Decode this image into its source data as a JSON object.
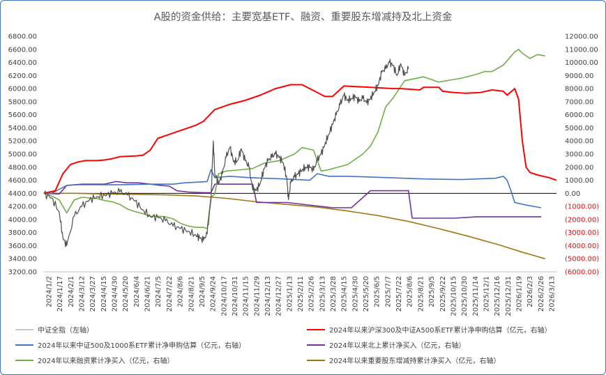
{
  "title": "A股的资金供给：主要宽基ETF、融资、重要股东增减持及北上资金",
  "chart_data": {
    "type": "line",
    "title": "A股的资金供给：主要宽基ETF、融资、重要股东增减持及北上资金",
    "y_left": {
      "min": 3200,
      "max": 6800,
      "step": 200,
      "ticks": [
        "3200.00",
        "3400.00",
        "3600.00",
        "3800.00",
        "4000.00",
        "4200.00",
        "4400.00",
        "4600.00",
        "4800.00",
        "5000.00",
        "5200.00",
        "5400.00",
        "5600.00",
        "5800.00",
        "6000.00",
        "6200.00",
        "6400.00",
        "6600.00",
        "6800.00"
      ]
    },
    "y_right": {
      "min": -6000,
      "max": 12000,
      "step": 1000,
      "ticks": [
        "(6000.00)",
        "(5000.00)",
        "(4000.00)",
        "(3000.00)",
        "(2000.00)",
        "(1000.00)",
        "0.00",
        "1000.00",
        "2000.00",
        "3000.00",
        "4000.00",
        "5000.00",
        "6000.00",
        "7000.00",
        "8000.00",
        "9000.00",
        "10000.00",
        "11000.00",
        "12000.00"
      ]
    },
    "x_ticks": [
      "2024/1/2",
      "2024/1/17",
      "2024/2/1",
      "2024/3/12",
      "2024/3/27",
      "2024/4/15",
      "2024/4/30",
      "2024/5/20",
      "2024/6/4",
      "2024/6/21",
      "2024/7/5",
      "2024/7/22",
      "2024/8/6",
      "2024/8/21",
      "2024/9/5",
      "2024/9/24",
      "2024/10/17",
      "2024/10/31",
      "2024/11/15",
      "2024/11/29",
      "2024/12/13",
      "2024/12/27",
      "2025/1/13",
      "2025/2/11",
      "2025/2/26",
      "2025/3/13",
      "2025/3/28",
      "2025/4/15",
      "2025/4/30",
      "2025/5/20",
      "2025/6/5",
      "2025/7/7",
      "2025/7/22",
      "2025/8/6",
      "2025/8/21",
      "2025/9/5",
      "2025/9/22",
      "2025/10/15",
      "2025/10/30",
      "2025/11/14",
      "2025/12/1",
      "2025/12/16",
      "2025/12/31",
      "2026/1/19",
      "2026/2/3",
      "2026/2/26",
      "2026/3/13"
    ],
    "series": [
      {
        "name": "中证全指（左轴）",
        "axis": "left",
        "color": "#4d4d4d",
        "points": [
          [
            0,
            4390
          ],
          [
            2,
            4330
          ],
          [
            4,
            4120
          ],
          [
            5,
            3720
          ],
          [
            6,
            3600
          ],
          [
            8,
            4050
          ],
          [
            10,
            4200
          ],
          [
            12,
            4300
          ],
          [
            14,
            4350
          ],
          [
            16,
            4370
          ],
          [
            18,
            4400
          ],
          [
            20,
            4420
          ],
          [
            22,
            4370
          ],
          [
            24,
            4280
          ],
          [
            26,
            4150
          ],
          [
            28,
            4050
          ],
          [
            30,
            4030
          ],
          [
            32,
            3980
          ],
          [
            34,
            3900
          ],
          [
            36,
            3860
          ],
          [
            38,
            3820
          ],
          [
            40,
            3760
          ],
          [
            41,
            3720
          ],
          [
            42,
            3680
          ],
          [
            43,
            3780
          ],
          [
            44,
            4300
          ],
          [
            44.6,
            5200
          ],
          [
            45,
            4700
          ],
          [
            46,
            4550
          ],
          [
            47,
            4700
          ],
          [
            48,
            4950
          ],
          [
            49,
            5100
          ],
          [
            50,
            4880
          ],
          [
            51,
            4900
          ],
          [
            52,
            5080
          ],
          [
            53,
            4900
          ],
          [
            54,
            4800
          ],
          [
            55,
            4450
          ],
          [
            56,
            4450
          ],
          [
            57,
            4560
          ],
          [
            58,
            4780
          ],
          [
            59,
            4900
          ],
          [
            60,
            4950
          ],
          [
            61,
            5000
          ],
          [
            62,
            4950
          ],
          [
            63,
            4870
          ],
          [
            64,
            4620
          ],
          [
            64.4,
            4300
          ],
          [
            65,
            4560
          ],
          [
            66,
            4650
          ],
          [
            67,
            4700
          ],
          [
            68,
            4760
          ],
          [
            69,
            4800
          ],
          [
            70,
            4800
          ],
          [
            71,
            4750
          ],
          [
            72,
            4900
          ],
          [
            73,
            5000
          ],
          [
            74,
            5150
          ],
          [
            75,
            5300
          ],
          [
            76,
            5450
          ],
          [
            77,
            5600
          ],
          [
            78,
            5750
          ],
          [
            79,
            5900
          ],
          [
            80,
            5820
          ],
          [
            81,
            5850
          ],
          [
            82,
            5880
          ],
          [
            83,
            5800
          ],
          [
            84,
            5850
          ],
          [
            85,
            5780
          ],
          [
            86,
            5850
          ],
          [
            87,
            5950
          ],
          [
            88,
            6050
          ],
          [
            89,
            6250
          ],
          [
            90,
            6300
          ],
          [
            91,
            6400
          ],
          [
            92,
            6350
          ],
          [
            93,
            6200
          ],
          [
            94,
            6380
          ],
          [
            95,
            6200
          ],
          [
            96,
            6300
          ]
        ]
      },
      {
        "name": "2024年以来沪深300及中证A500系ETF累计净申购估算（亿元，右轴）",
        "axis": "right",
        "color": "#ff0000",
        "points": [
          [
            0,
            0
          ],
          [
            3,
            200
          ],
          [
            5,
            1500
          ],
          [
            7,
            2200
          ],
          [
            9,
            2400
          ],
          [
            11,
            2500
          ],
          [
            14,
            2500
          ],
          [
            16,
            2550
          ],
          [
            18,
            2650
          ],
          [
            20,
            2800
          ],
          [
            24,
            2850
          ],
          [
            26,
            2900
          ],
          [
            28,
            3300
          ],
          [
            30,
            4200
          ],
          [
            33,
            4500
          ],
          [
            36,
            4800
          ],
          [
            40,
            5200
          ],
          [
            42,
            5500
          ],
          [
            43,
            5800
          ],
          [
            45,
            6400
          ],
          [
            49,
            6800
          ],
          [
            53,
            7100
          ],
          [
            57,
            7500
          ],
          [
            61,
            8000
          ],
          [
            65,
            8300
          ],
          [
            68,
            8300
          ],
          [
            71,
            7850
          ],
          [
            74,
            7400
          ],
          [
            76,
            7400
          ],
          [
            79,
            8200
          ],
          [
            86,
            8100
          ],
          [
            92,
            8000
          ],
          [
            94,
            8000
          ],
          [
            99,
            7900
          ],
          [
            100,
            8100
          ],
          [
            104,
            8100
          ],
          [
            105,
            7800
          ],
          [
            108,
            7700
          ],
          [
            111,
            7650
          ],
          [
            115,
            7700
          ],
          [
            118,
            7900
          ],
          [
            121,
            7800
          ],
          [
            122,
            7500
          ],
          [
            124,
            8000
          ],
          [
            125,
            7200
          ],
          [
            126,
            4000
          ],
          [
            127,
            2000
          ],
          [
            128,
            1600
          ],
          [
            130,
            1400
          ],
          [
            133,
            1200
          ],
          [
            135,
            1000
          ]
        ]
      },
      {
        "name": "2024年以来中证500及1000系ETF累计净申购估算（亿元，右轴）",
        "axis": "right",
        "color": "#4472c4",
        "points": [
          [
            0,
            0
          ],
          [
            2,
            0
          ],
          [
            4,
            300
          ],
          [
            6,
            600
          ],
          [
            8,
            650
          ],
          [
            10,
            650
          ],
          [
            20,
            650
          ],
          [
            28,
            700
          ],
          [
            34,
            700
          ],
          [
            37,
            800
          ],
          [
            40,
            850
          ],
          [
            43,
            900
          ],
          [
            44,
            1800
          ],
          [
            45,
            1200
          ],
          [
            49,
            1300
          ],
          [
            54,
            1200
          ],
          [
            63,
            1100
          ],
          [
            70,
            1000
          ],
          [
            72,
            1500
          ],
          [
            75,
            1300
          ],
          [
            80,
            1300
          ],
          [
            100,
            1100
          ],
          [
            110,
            1050
          ],
          [
            119,
            1150
          ],
          [
            121,
            1300
          ],
          [
            122,
            1000
          ],
          [
            123,
            200
          ],
          [
            124,
            -700
          ],
          [
            127,
            -900
          ],
          [
            131,
            -1100
          ]
        ]
      },
      {
        "name": "2024年以来北上累计净买入（亿元，右轴）",
        "axis": "right",
        "color": "#7030a0",
        "points": [
          [
            0,
            0
          ],
          [
            4,
            -50
          ],
          [
            6,
            600
          ],
          [
            10,
            700
          ],
          [
            16,
            700
          ],
          [
            19,
            900
          ],
          [
            22,
            800
          ],
          [
            25,
            800
          ],
          [
            28,
            700
          ],
          [
            31,
            600
          ],
          [
            33,
            550
          ],
          [
            35,
            200
          ],
          [
            38,
            100
          ],
          [
            42,
            50
          ],
          [
            44,
            50
          ],
          [
            45,
            700
          ],
          [
            55,
            700
          ],
          [
            56,
            -700
          ],
          [
            61,
            -700
          ],
          [
            64,
            -700
          ],
          [
            76,
            -1100
          ],
          [
            81,
            -1100
          ],
          [
            86,
            200
          ],
          [
            96,
            200
          ],
          [
            97,
            -1900
          ],
          [
            108,
            -1900
          ],
          [
            114,
            -1800
          ],
          [
            131,
            -1800
          ]
        ]
      },
      {
        "name": "2024年以来融资累计净买入（亿元，右轴）",
        "axis": "right",
        "color": "#70ad47",
        "points": [
          [
            0,
            0
          ],
          [
            2,
            -200
          ],
          [
            4,
            -500
          ],
          [
            5,
            -1000
          ],
          [
            6,
            -1500
          ],
          [
            8,
            -500
          ],
          [
            10,
            -300
          ],
          [
            14,
            -400
          ],
          [
            16,
            -550
          ],
          [
            18,
            -650
          ],
          [
            20,
            -850
          ],
          [
            22,
            -1200
          ],
          [
            24,
            -1400
          ],
          [
            26,
            -1550
          ],
          [
            28,
            -1750
          ],
          [
            30,
            -1750
          ],
          [
            32,
            -1800
          ],
          [
            34,
            -1950
          ],
          [
            36,
            -2300
          ],
          [
            38,
            -2500
          ],
          [
            40,
            -2600
          ],
          [
            42,
            -2600
          ],
          [
            43,
            -2700
          ],
          [
            44,
            -300
          ],
          [
            45,
            -50
          ],
          [
            46,
            1500
          ],
          [
            48,
            1700
          ],
          [
            52,
            1800
          ],
          [
            55,
            1900
          ],
          [
            58,
            2300
          ],
          [
            62,
            2500
          ],
          [
            66,
            3000
          ],
          [
            68,
            3500
          ],
          [
            71,
            3300
          ],
          [
            72,
            2500
          ],
          [
            73,
            1700
          ],
          [
            75,
            1800
          ],
          [
            80,
            2200
          ],
          [
            84,
            3000
          ],
          [
            86,
            3600
          ],
          [
            88,
            4700
          ],
          [
            90,
            6600
          ],
          [
            92,
            7300
          ],
          [
            95,
            8600
          ],
          [
            100,
            8900
          ],
          [
            104,
            8500
          ],
          [
            108,
            8700
          ],
          [
            110,
            8800
          ],
          [
            114,
            9100
          ],
          [
            116,
            9300
          ],
          [
            118,
            9300
          ],
          [
            121,
            9800
          ],
          [
            124,
            10800
          ],
          [
            125,
            11000
          ],
          [
            126,
            10700
          ],
          [
            128,
            10300
          ],
          [
            130,
            10600
          ],
          [
            132,
            10500
          ]
        ]
      },
      {
        "name": "2024年以来重要股东增减持累计净买入（亿元，右轴）",
        "axis": "right",
        "color": "#a07812",
        "points": [
          [
            0,
            0
          ],
          [
            8,
            0
          ],
          [
            16,
            -50
          ],
          [
            24,
            -80
          ],
          [
            32,
            -120
          ],
          [
            40,
            -200
          ],
          [
            48,
            -380
          ],
          [
            56,
            -650
          ],
          [
            64,
            -850
          ],
          [
            72,
            -1050
          ],
          [
            80,
            -1350
          ],
          [
            88,
            -1700
          ],
          [
            96,
            -2150
          ],
          [
            104,
            -2700
          ],
          [
            112,
            -3300
          ],
          [
            120,
            -3950
          ],
          [
            126,
            -4500
          ],
          [
            132,
            -5000
          ]
        ]
      }
    ]
  }
}
